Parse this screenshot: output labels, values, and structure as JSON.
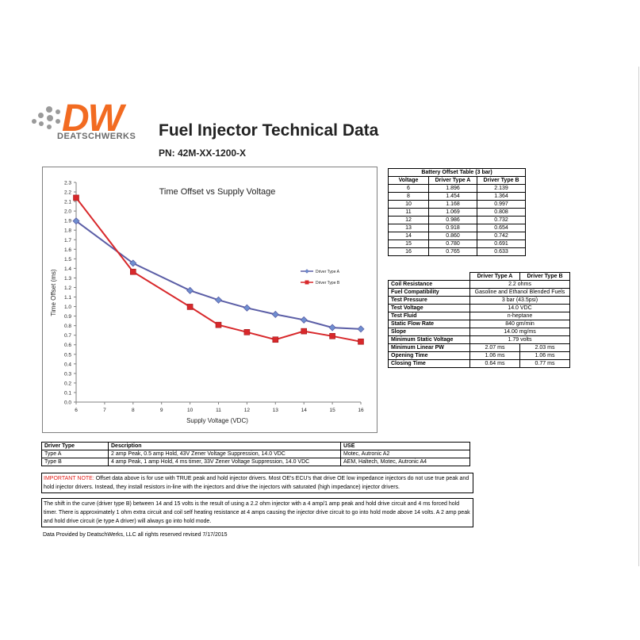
{
  "header": {
    "logo_text": "DW",
    "logo_sub": "DEATSCHWERKS",
    "title": "Fuel Injector Technical Data",
    "part_number": "PN: 42M-XX-1200-X"
  },
  "colors": {
    "accent": "#f26b21",
    "series_a": "#5b5ea6",
    "series_b": "#d8282b"
  },
  "chart_data": {
    "type": "line",
    "title": "Time Offset vs Supply Voltage",
    "xlabel": "Supply Voltage (VDC)",
    "ylabel": "Time Offset (ms)",
    "xlim": [
      6,
      16
    ],
    "ylim": [
      0,
      2.3
    ],
    "x_ticks": [
      "6",
      "7",
      "8",
      "9",
      "10",
      "11",
      "12",
      "13",
      "14",
      "15",
      "16"
    ],
    "y_ticks": [
      "0.0",
      "0.1",
      "0.2",
      "0.3",
      "0.4",
      "0.5",
      "0.6",
      "0.7",
      "0.8",
      "0.9",
      "1.0",
      "1.1",
      "1.2",
      "1.3",
      "1.4",
      "1.5",
      "1.6",
      "1.7",
      "1.8",
      "1.9",
      "2.0",
      "2.1",
      "2.2",
      "2.3"
    ],
    "legend_position": "right",
    "series": [
      {
        "name": "Driver Type A",
        "color": "#5b5ea6",
        "marker": "diamond",
        "x": [
          6,
          8,
          10,
          11,
          12,
          13,
          14,
          15,
          16
        ],
        "y": [
          1.896,
          1.454,
          1.168,
          1.069,
          0.986,
          0.918,
          0.86,
          0.78,
          0.765
        ]
      },
      {
        "name": "Driver Type B",
        "color": "#d8282b",
        "marker": "square",
        "x": [
          6,
          8,
          10,
          11,
          12,
          13,
          14,
          15,
          16
        ],
        "y": [
          2.139,
          1.364,
          0.997,
          0.808,
          0.732,
          0.654,
          0.742,
          0.691,
          0.633
        ]
      }
    ]
  },
  "battery_table": {
    "title": "Battery Offset Table (3 bar)",
    "headers": [
      "Voltage",
      "Driver Type A",
      "Driver Type B"
    ],
    "rows": [
      [
        "6",
        "1.896",
        "2.139"
      ],
      [
        "8",
        "1.454",
        "1.364"
      ],
      [
        "10",
        "1.168",
        "0.997"
      ],
      [
        "11",
        "1.069",
        "0.808"
      ],
      [
        "12",
        "0.986",
        "0.732"
      ],
      [
        "13",
        "0.918",
        "0.654"
      ],
      [
        "14",
        "0.860",
        "0.742"
      ],
      [
        "15",
        "0.780",
        "0.691"
      ],
      [
        "16",
        "0.765",
        "0.633"
      ]
    ]
  },
  "spec_table": {
    "headers": [
      "Driver Type A",
      "Driver Type B"
    ],
    "rows": [
      {
        "label": "Coil Resistance",
        "value": "2.2 ohms"
      },
      {
        "label": "Fuel Compatibility",
        "value": "Gasoline and Ethanol Blended Fuels"
      },
      {
        "label": "Test Pressure",
        "value": "3 bar (43.5psi)"
      },
      {
        "label": "Test Voltage",
        "value": "14.0 VDC"
      },
      {
        "label": "Test Fluid",
        "value": "n-heptane"
      },
      {
        "label": "Static Flow Rate",
        "value": "840 gm/min"
      },
      {
        "label": "Slope",
        "value": "14.00 mg/ms"
      },
      {
        "label": "Minimum Static Voltage",
        "value": "1.79 volts"
      },
      {
        "label": "Minimum Linear PW",
        "a": "2.07 ms",
        "b": "2.03 ms"
      },
      {
        "label": "Opening Time",
        "a": "1.06 ms",
        "b": "1.06 ms"
      },
      {
        "label": "Closing Time",
        "a": "0.64 ms",
        "b": "0.77 ms"
      }
    ]
  },
  "driver_table": {
    "headers": [
      "Driver Type",
      "Description",
      "USE"
    ],
    "rows": [
      [
        "Type A",
        "2 amp Peak, 0.5 amp Hold, 43V Zener Voltage Suppression, 14.0 VDC",
        "Motec, Autronic A2"
      ],
      [
        "Type B",
        "4 amp Peak, 1 amp Hold, 4 ms timer, 33V Zener Voltage Suppression, 14.0 VDC",
        "AEM, Haltech, Motec, Autronic A4"
      ]
    ]
  },
  "notes": {
    "important_lead": "IMPORTANT NOTE:",
    "important_text": " Offset data above is for use with TRUE peak and hold injector drivers.  Most OE's ECU's that drive OE low impedance injectors do not use true peak and hold injector drivers.  Instead, they install resistors in-line with the injectors and drive the injectors with saturated (high impedance) injector drivers.",
    "shift_text": "The shift in the curve (driver type B) between 14 and 15 volts is the result of using a 2.2 ohm injector with a 4 amp/1 amp peak and hold drive circuit and 4 ms forced hold timer. There is approximately 1 ohm extra circuit and coil self heating resistance at 4 amps causing the injector drive circuit to go into hold mode above 14 volts. A 2 amp peak and hold drive circuit (ie type A driver) will always go into hold mode."
  },
  "footer": "Data Provided by DeatschWerks, LLC     all rights reserved     revised 7/17/2015"
}
